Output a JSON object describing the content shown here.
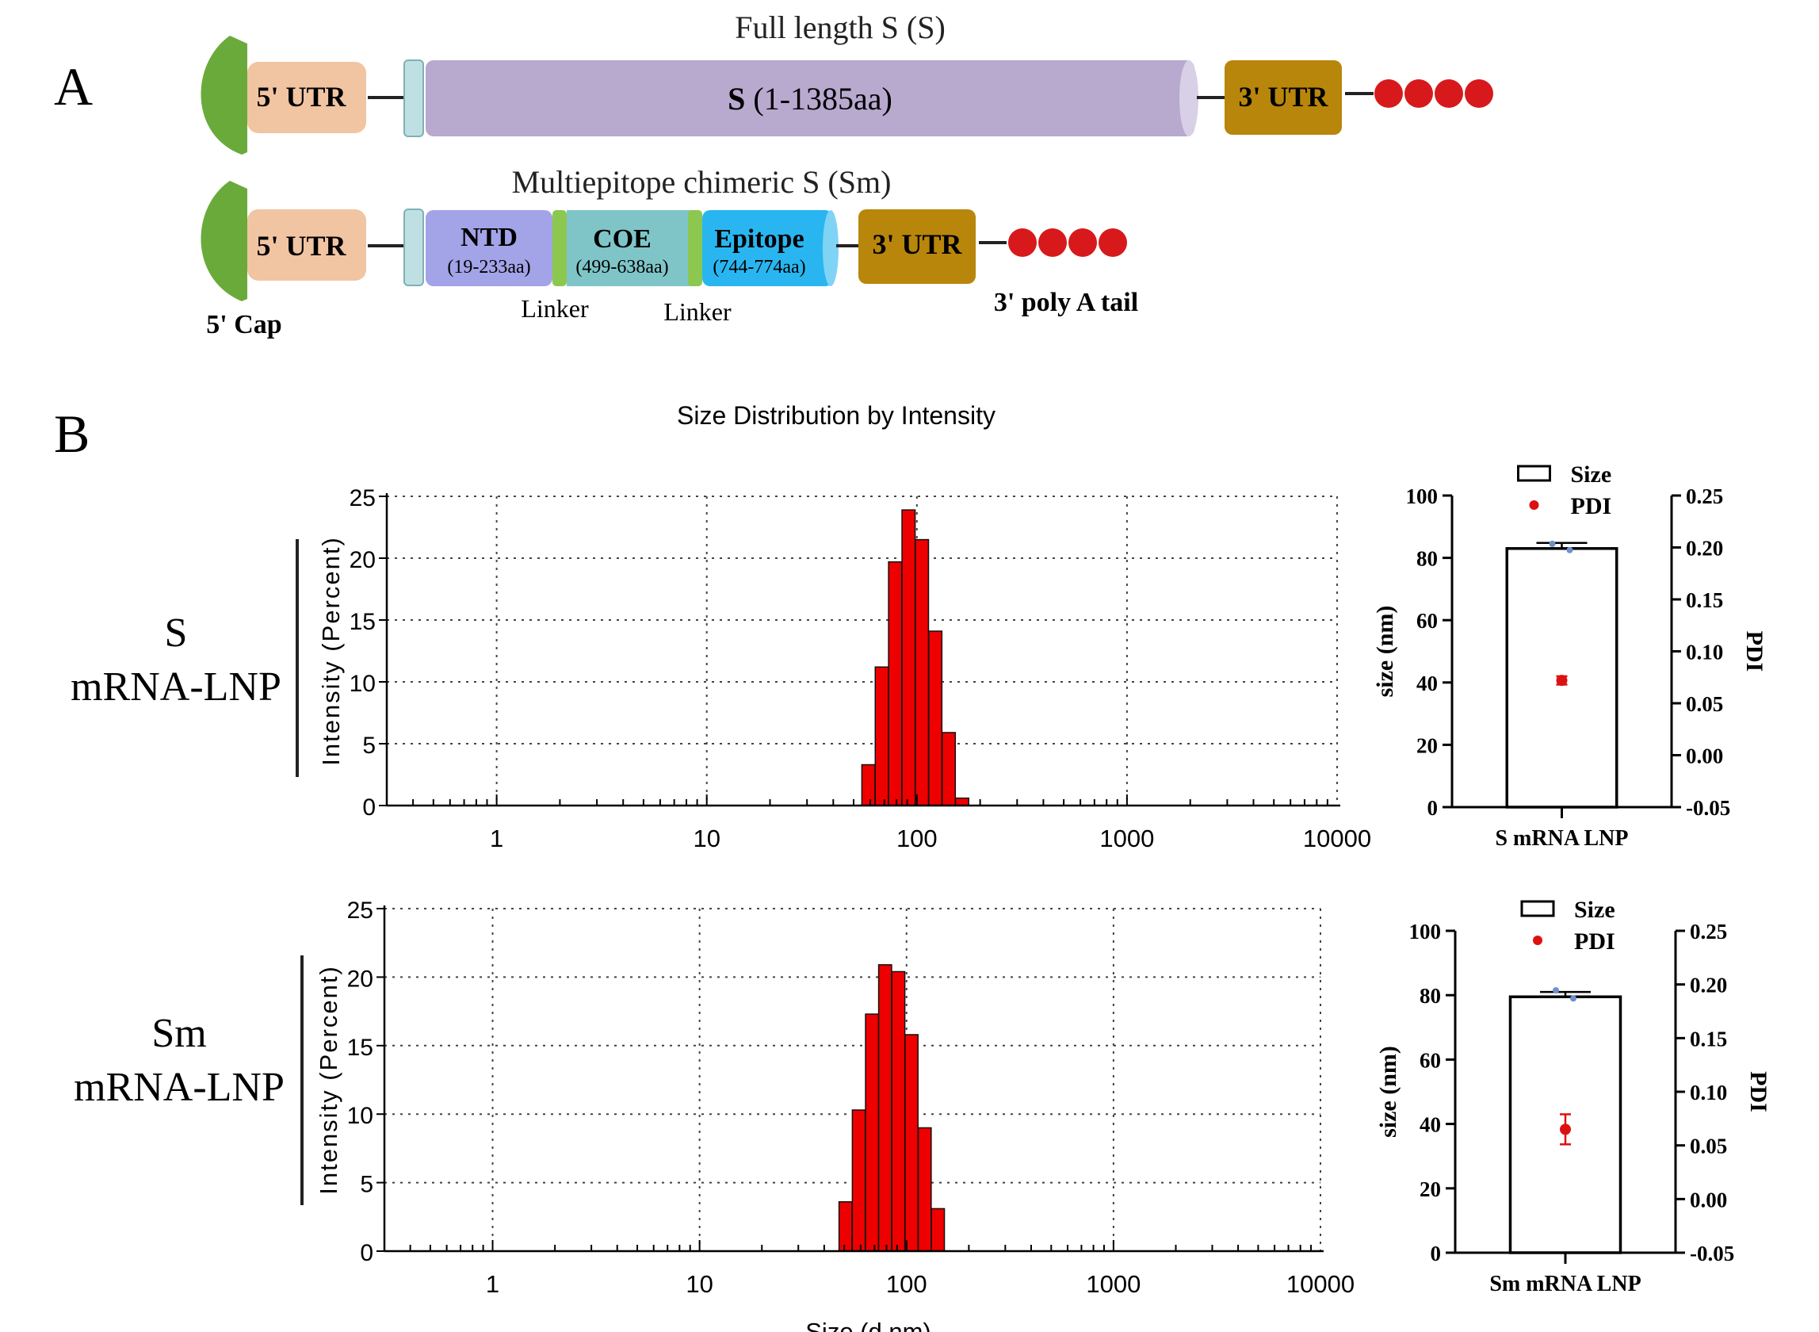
{
  "panel_a": {
    "label": "A",
    "construct_s": {
      "title": "Full length S (S)",
      "utr5": "5' UTR",
      "body_main": "S",
      "body_sub": "(1-1385aa)",
      "utr3": "3' UTR"
    },
    "construct_sm": {
      "title": "Multiepitope chimeric S (Sm)",
      "utr5": "5' UTR",
      "ntd": "NTD",
      "ntd_range": "(19-233aa)",
      "coe": "COE",
      "coe_range": "(499-638aa)",
      "epitope": "Epitope",
      "epitope_range": "(744-774aa)",
      "utr3": "3' UTR"
    },
    "cap_label": "5' Cap",
    "linker1": "Linker",
    "linker2": "Linker",
    "polya_label": "3' poly A tail",
    "colors": {
      "cap": "#6aaa3a",
      "utr5": "#f1c4a2",
      "spacer": "#bfe0e2",
      "s_body": "#b8a9cf",
      "ntd": "#a3a3e8",
      "coe": "#7fc5c8",
      "epitope": "#29b6f0",
      "linker": "#8cc850",
      "utr3": "#b8860b",
      "polya": "#d7191c"
    }
  },
  "panel_b": {
    "label": "B",
    "dls_title": "Size Distribution by Intensity",
    "row_s_label_1": "S",
    "row_s_label_2": "mRNA-LNP",
    "row_sm_label_1": "Sm",
    "row_sm_label_2": "mRNA-LNP",
    "bar_color": "#ee0000",
    "pdi_color": "#dd1111"
  },
  "chart_data": [
    {
      "type": "bar",
      "panel": "S mRNA-LNP size distribution",
      "title": "Size Distribution by Intensity",
      "xlabel": "",
      "ylabel": "Intensity (Percent)",
      "xscale": "log",
      "xlim": [
        0.3,
        10000
      ],
      "ylim": [
        0,
        25
      ],
      "xticks": [
        "1",
        "10",
        "100",
        "1000",
        "10000"
      ],
      "yticks": [
        "0",
        "5",
        "10",
        "15",
        "20",
        "25"
      ],
      "grid": true,
      "x": [
        58.8,
        68.1,
        78.8,
        91.3,
        105.7,
        122.4,
        141.8,
        164.2
      ],
      "values": [
        3.3,
        11.2,
        19.7,
        23.9,
        21.5,
        14.1,
        5.9,
        0.6
      ]
    },
    {
      "type": "bar",
      "panel": "S mRNA-LNP size and PDI",
      "categories": [
        "S mRNA LNP"
      ],
      "series": [
        {
          "name": "Size",
          "axis": "left",
          "values": [
            83.0
          ],
          "error": [
            1.8
          ],
          "replicates": [
            84.5,
            82.5
          ]
        },
        {
          "name": "PDI",
          "axis": "right",
          "type": "scatter",
          "values": [
            0.072
          ],
          "error": [
            0.004
          ]
        }
      ],
      "ylabel": "size (nm)",
      "ylim": [
        0,
        100
      ],
      "yticks": [
        "0",
        "20",
        "40",
        "60",
        "80",
        "100"
      ],
      "y2label": "PDI",
      "y2lim": [
        -0.05,
        0.25
      ],
      "y2ticks": [
        "-0.05",
        "0.00",
        "0.05",
        "0.10",
        "0.15",
        "0.20",
        "0.25"
      ],
      "legend": "top"
    },
    {
      "type": "bar",
      "panel": "Sm mRNA-LNP size distribution",
      "xlabel": "Size (d.nm)",
      "ylabel": "Intensity (Percent)",
      "xscale": "log",
      "xlim": [
        0.3,
        10000
      ],
      "ylim": [
        0,
        25
      ],
      "xticks": [
        "1",
        "10",
        "100",
        "1000",
        "10000"
      ],
      "yticks": [
        "0",
        "5",
        "10",
        "15",
        "20",
        "25"
      ],
      "grid": true,
      "x": [
        50.7,
        58.8,
        68.1,
        78.8,
        91.3,
        105.7,
        122.4,
        141.8
      ],
      "values": [
        3.6,
        10.3,
        17.3,
        20.9,
        20.4,
        15.8,
        9.0,
        3.1
      ]
    },
    {
      "type": "bar",
      "panel": "Sm mRNA-LNP size and PDI",
      "categories": [
        "Sm mRNA LNP"
      ],
      "series": [
        {
          "name": "Size",
          "axis": "left",
          "values": [
            79.5
          ],
          "error": [
            1.5
          ],
          "replicates": [
            81.5,
            79.0
          ]
        },
        {
          "name": "PDI",
          "axis": "right",
          "type": "scatter",
          "values": [
            0.065
          ],
          "error": [
            0.014
          ]
        }
      ],
      "ylabel": "size (nm)",
      "ylim": [
        0,
        100
      ],
      "yticks": [
        "0",
        "20",
        "40",
        "60",
        "80",
        "100"
      ],
      "y2label": "PDI",
      "y2lim": [
        -0.05,
        0.25
      ],
      "y2ticks": [
        "-0.05",
        "0.00",
        "0.05",
        "0.10",
        "0.15",
        "0.20",
        "0.25"
      ],
      "legend": "top"
    }
  ]
}
